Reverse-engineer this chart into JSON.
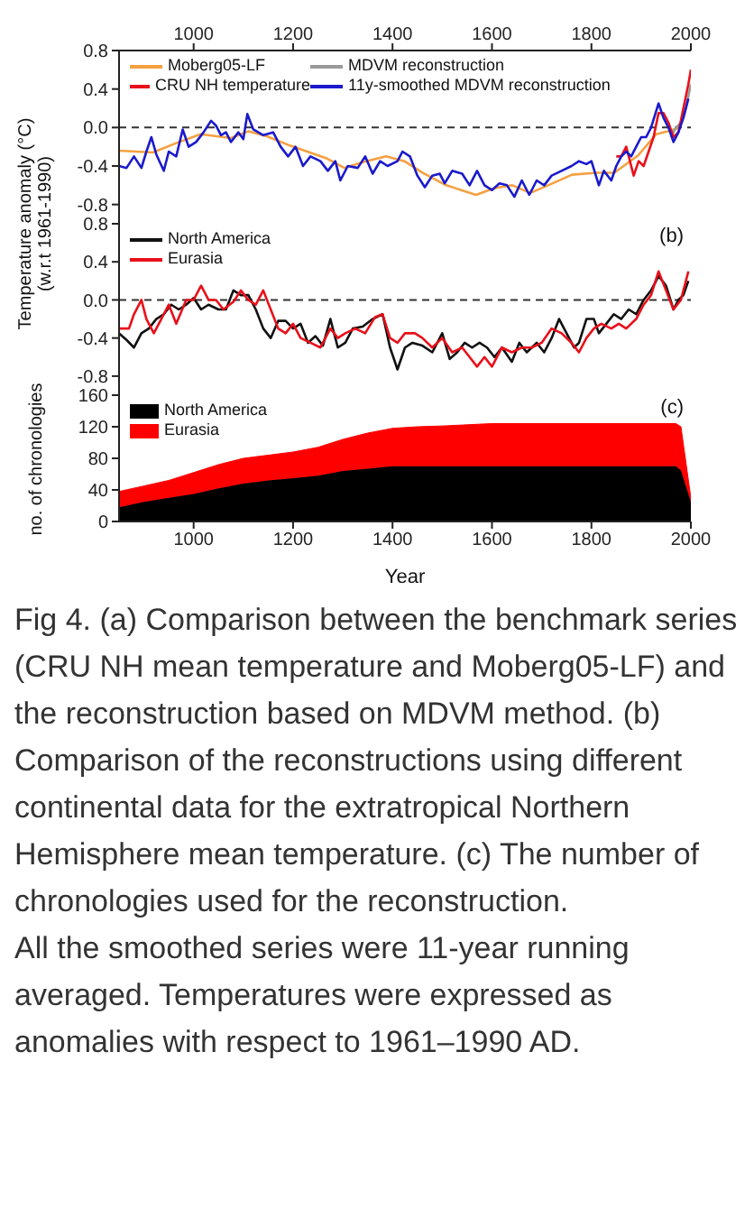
{
  "chart_data": [
    {
      "type": "line",
      "ylabel": "Temperature anomaly (°C) (w.r.t 1961-1990)",
      "xlim": [
        850,
        2000
      ],
      "x2lim": [
        850,
        2000
      ],
      "x2ticks": [
        1000,
        1200,
        1400,
        1600,
        1800,
        2000
      ],
      "ylim": [
        -1.0,
        0.8
      ],
      "yticks": [
        {
          "value": -0.8,
          "label": "-0.8"
        },
        {
          "value": -0.4,
          "label": "-0.4"
        },
        {
          "value": 0,
          "label": "0.0"
        },
        {
          "value": 0.4,
          "label": "0.4"
        },
        {
          "value": 0.8,
          "label": "0.8"
        }
      ],
      "legend": "top left",
      "ref_lines": [
        {
          "axis": "y",
          "value": 0,
          "line_style": "dashed",
          "color": "#333333"
        }
      ],
      "series": [
        {
          "name": "Moberg05-LF",
          "color": "#f5a040",
          "x": [
            850,
            918,
            966,
            1014,
            1075,
            1110,
            1147,
            1195,
            1267,
            1303,
            1340,
            1387,
            1424,
            1460,
            1508,
            1568,
            1605,
            1641,
            1677,
            1713,
            1761,
            1810,
            1846,
            1894,
            1930,
            1954,
            1979
          ],
          "values": [
            -0.24,
            -0.26,
            -0.16,
            -0.07,
            -0.11,
            -0.04,
            -0.09,
            -0.19,
            -0.32,
            -0.42,
            -0.36,
            -0.3,
            -0.35,
            -0.47,
            -0.6,
            -0.7,
            -0.63,
            -0.6,
            -0.68,
            -0.6,
            -0.49,
            -0.47,
            -0.47,
            -0.29,
            -0.07,
            -0.04,
            0.0
          ]
        },
        {
          "name": "MDVM reconstruction",
          "color": "#999999",
          "x": [
            1960,
            1970,
            1980,
            1990,
            2000
          ],
          "values": [
            -0.1,
            0.0,
            0.05,
            0.2,
            0.45
          ]
        },
        {
          "name": "CRU NH temperature",
          "color": "#e8101a",
          "x": [
            1850,
            1860,
            1870,
            1880,
            1885,
            1895,
            1905,
            1915,
            1925,
            1935,
            1945,
            1955,
            1965,
            1975,
            1985,
            1995,
            2000
          ],
          "values": [
            -0.3,
            -0.3,
            -0.2,
            -0.4,
            -0.5,
            -0.35,
            -0.4,
            -0.25,
            -0.1,
            0.15,
            0.15,
            0.05,
            -0.1,
            -0.05,
            0.2,
            0.45,
            0.6
          ]
        },
        {
          "name": "11y-smoothed MDVM reconstruction",
          "color": "#1a1acc",
          "x": [
            850,
            865,
            880,
            895,
            905,
            915,
            925,
            940,
            950,
            965,
            978,
            990,
            1005,
            1020,
            1035,
            1045,
            1055,
            1065,
            1075,
            1090,
            1100,
            1108,
            1120,
            1140,
            1160,
            1175,
            1190,
            1205,
            1220,
            1235,
            1255,
            1270,
            1285,
            1295,
            1310,
            1330,
            1345,
            1360,
            1375,
            1390,
            1410,
            1420,
            1435,
            1450,
            1465,
            1480,
            1495,
            1505,
            1520,
            1540,
            1555,
            1570,
            1585,
            1600,
            1615,
            1630,
            1645,
            1660,
            1675,
            1690,
            1705,
            1720,
            1740,
            1760,
            1775,
            1790,
            1800,
            1815,
            1825,
            1840,
            1850,
            1860,
            1870,
            1880,
            1890,
            1900,
            1910,
            1920,
            1935,
            1945,
            1955,
            1965,
            1975,
            1985,
            1995
          ],
          "values": [
            -0.4,
            -0.42,
            -0.3,
            -0.42,
            -0.25,
            -0.1,
            -0.28,
            -0.45,
            -0.25,
            -0.3,
            -0.02,
            -0.2,
            -0.15,
            -0.05,
            0.07,
            0.02,
            -0.08,
            -0.05,
            -0.15,
            -0.05,
            -0.12,
            0.14,
            -0.02,
            -0.08,
            -0.05,
            -0.2,
            -0.3,
            -0.2,
            -0.4,
            -0.3,
            -0.35,
            -0.45,
            -0.35,
            -0.55,
            -0.4,
            -0.42,
            -0.3,
            -0.48,
            -0.35,
            -0.4,
            -0.35,
            -0.25,
            -0.3,
            -0.5,
            -0.62,
            -0.5,
            -0.48,
            -0.58,
            -0.45,
            -0.48,
            -0.6,
            -0.45,
            -0.6,
            -0.65,
            -0.58,
            -0.6,
            -0.72,
            -0.55,
            -0.7,
            -0.55,
            -0.6,
            -0.5,
            -0.45,
            -0.4,
            -0.35,
            -0.38,
            -0.35,
            -0.6,
            -0.45,
            -0.55,
            -0.4,
            -0.3,
            -0.25,
            -0.3,
            -0.2,
            -0.1,
            -0.1,
            0.0,
            0.25,
            0.1,
            0.0,
            -0.15,
            -0.05,
            0.1,
            0.3
          ]
        }
      ]
    },
    {
      "type": "line",
      "annotations": [
        "(b)"
      ],
      "xlim": [
        850,
        2000
      ],
      "xticks": [
        1000,
        1200,
        1400,
        1600,
        1800,
        2000
      ],
      "tick_labels": "y",
      "ylim": [
        -1.0,
        0.8
      ],
      "yticks": [
        {
          "value": -0.8,
          "label": "-0.8"
        },
        {
          "value": -0.4,
          "label": "-0.4"
        },
        {
          "value": 0,
          "label": "0.0"
        },
        {
          "value": 0.4,
          "label": "0.4"
        },
        {
          "value": 0.8,
          "label": "0.8"
        }
      ],
      "legend": "top left",
      "ref_lines": [
        {
          "axis": "y",
          "value": 0,
          "line_style": "dashed",
          "color": "#333333"
        }
      ],
      "series": [
        {
          "name": "North America",
          "color": "#111111",
          "x": [
            850,
            865,
            880,
            895,
            910,
            925,
            940,
            955,
            970,
            985,
            1000,
            1015,
            1030,
            1050,
            1065,
            1080,
            1095,
            1110,
            1125,
            1140,
            1155,
            1170,
            1185,
            1200,
            1215,
            1230,
            1245,
            1260,
            1275,
            1290,
            1305,
            1320,
            1340,
            1360,
            1380,
            1395,
            1410,
            1425,
            1440,
            1460,
            1480,
            1500,
            1515,
            1530,
            1545,
            1560,
            1575,
            1590,
            1605,
            1620,
            1640,
            1655,
            1670,
            1690,
            1705,
            1720,
            1735,
            1750,
            1765,
            1775,
            1790,
            1805,
            1815,
            1830,
            1845,
            1860,
            1875,
            1890,
            1905,
            1920,
            1935,
            1950,
            1965,
            1975,
            1985,
            1995
          ],
          "values": [
            -0.35,
            -0.42,
            -0.5,
            -0.35,
            -0.3,
            -0.2,
            -0.15,
            -0.05,
            -0.1,
            -0.05,
            0.02,
            -0.1,
            -0.05,
            -0.1,
            -0.1,
            0.1,
            0.05,
            0.05,
            -0.1,
            -0.3,
            -0.4,
            -0.22,
            -0.22,
            -0.3,
            -0.25,
            -0.45,
            -0.38,
            -0.48,
            -0.2,
            -0.5,
            -0.45,
            -0.3,
            -0.28,
            -0.2,
            -0.15,
            -0.5,
            -0.73,
            -0.5,
            -0.45,
            -0.48,
            -0.55,
            -0.35,
            -0.62,
            -0.55,
            -0.45,
            -0.5,
            -0.45,
            -0.5,
            -0.6,
            -0.5,
            -0.65,
            -0.45,
            -0.55,
            -0.45,
            -0.55,
            -0.4,
            -0.2,
            -0.35,
            -0.5,
            -0.45,
            -0.2,
            -0.2,
            -0.35,
            -0.25,
            -0.15,
            -0.2,
            -0.1,
            -0.15,
            0.0,
            0.1,
            0.25,
            0.15,
            -0.1,
            0.0,
            0.05,
            0.2
          ]
        },
        {
          "name": "Eurasia",
          "color": "#e8101a",
          "x": [
            850,
            870,
            880,
            895,
            905,
            920,
            935,
            950,
            965,
            985,
            1000,
            1015,
            1030,
            1045,
            1060,
            1080,
            1095,
            1110,
            1125,
            1140,
            1155,
            1170,
            1185,
            1200,
            1215,
            1235,
            1255,
            1275,
            1290,
            1305,
            1325,
            1345,
            1365,
            1380,
            1395,
            1410,
            1425,
            1445,
            1460,
            1480,
            1500,
            1520,
            1540,
            1555,
            1570,
            1585,
            1600,
            1620,
            1640,
            1660,
            1680,
            1700,
            1720,
            1740,
            1760,
            1775,
            1790,
            1805,
            1820,
            1840,
            1855,
            1870,
            1890,
            1905,
            1920,
            1935,
            1950,
            1965,
            1980,
            1995
          ],
          "values": [
            -0.3,
            -0.3,
            -0.15,
            0.0,
            -0.2,
            -0.35,
            -0.2,
            -0.05,
            -0.25,
            0.0,
            0.0,
            0.15,
            0.0,
            0.0,
            -0.1,
            -0.02,
            0.1,
            0.0,
            -0.05,
            0.1,
            -0.1,
            -0.3,
            -0.35,
            -0.25,
            -0.4,
            -0.45,
            -0.5,
            -0.3,
            -0.4,
            -0.35,
            -0.3,
            -0.35,
            -0.18,
            -0.15,
            -0.4,
            -0.45,
            -0.35,
            -0.35,
            -0.4,
            -0.5,
            -0.4,
            -0.55,
            -0.5,
            -0.6,
            -0.7,
            -0.6,
            -0.7,
            -0.5,
            -0.55,
            -0.5,
            -0.5,
            -0.45,
            -0.3,
            -0.35,
            -0.45,
            -0.55,
            -0.4,
            -0.3,
            -0.25,
            -0.3,
            -0.25,
            -0.3,
            -0.2,
            -0.05,
            0.05,
            0.3,
            0.1,
            -0.1,
            0.0,
            0.3
          ]
        }
      ]
    },
    {
      "type": "area",
      "stacked": true,
      "xlabel": "Year",
      "ylabel": "no. of chronologies",
      "annotations": [
        "(c)",
        "Fig 4. (a) Comparison between the benchmark series (CRU NH mean temperature and Moberg05-LF) and the reconstruction based on MDVM method. (b) Comparison of the reconstructions using different continental data for the extratropical Northern Hemisphere mean temperature. (c) The number of chronologies used for the reconstruction.",
        "All the smoothed series were 11-year running averaged. Temperatures were expressed as anomalies with respect to 1961–1990 AD."
      ],
      "xlim": [
        850,
        2000
      ],
      "xticks": [
        1000,
        1200,
        1400,
        1600,
        1800,
        2000
      ],
      "ylim": [
        0,
        160
      ],
      "yticks": [
        0,
        40,
        80,
        120,
        160
      ],
      "legend": "top left",
      "x": [
        850,
        900,
        950,
        1000,
        1050,
        1100,
        1150,
        1200,
        1250,
        1300,
        1350,
        1400,
        1450,
        1500,
        1600,
        1970,
        1980,
        2000
      ],
      "series": [
        {
          "name": "North America",
          "color": "#000000",
          "values": [
            18,
            25,
            30,
            35,
            42,
            48,
            52,
            55,
            58,
            64,
            67,
            70,
            70,
            70,
            70,
            70,
            65,
            25
          ]
        },
        {
          "name": "Eurasia",
          "color": "#ff0000",
          "values": [
            20,
            20,
            22,
            27,
            30,
            32,
            32,
            33,
            36,
            40,
            45,
            48,
            50,
            51,
            54,
            54,
            55,
            5
          ]
        }
      ]
    }
  ]
}
